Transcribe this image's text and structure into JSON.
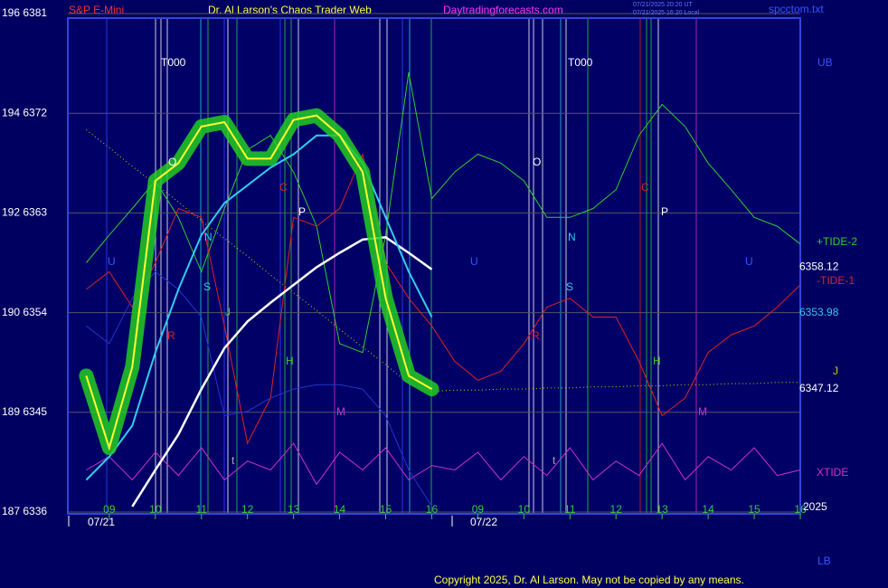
{
  "chart_data": {
    "type": "line",
    "title": "Dr. Al Larson's Chaos Trader Web",
    "instrument": "S&P E-Mini",
    "site": "Daytradingforecasts.com",
    "timestamps": [
      "07/21/2025 20:20 UT",
      "07/21/2025 16:20 Local"
    ],
    "file": "spcctom.txt",
    "copyright": "Copyright 2025, Dr. Al Larson. May not be copied by any means.",
    "dates": [
      "07/21",
      "07/22"
    ],
    "x": [
      8.5,
      9,
      9.5,
      10,
      10.5,
      11,
      11.5,
      12,
      12.5,
      13,
      13.5,
      14,
      14.5,
      15,
      15.5,
      16,
      16.5,
      17,
      17.5,
      18,
      18.5,
      19,
      19.5,
      20,
      20.5,
      21,
      21.5,
      22,
      22.5,
      23,
      23.5,
      24
    ],
    "xlim": [
      8.1,
      24
    ],
    "xticks": [
      {
        "value": 9,
        "label": "09"
      },
      10,
      11,
      12,
      13,
      14,
      15,
      16,
      {
        "value": 17,
        "label": "09"
      },
      {
        "value": 18,
        "label": "10"
      },
      {
        "value": 19,
        "label": "11"
      },
      {
        "value": 20,
        "label": "12"
      },
      {
        "value": 21,
        "label": "13"
      },
      {
        "value": 22,
        "label": "14"
      },
      {
        "value": 23,
        "label": "15"
      },
      {
        "value": 24,
        "label": "16"
      }
    ],
    "ylim": [
      6336,
      6381
    ],
    "yticks": [
      {
        "value": 6381,
        "label": "196  6381"
      },
      {
        "value": 6372,
        "label": "194  6372"
      },
      {
        "value": 6363,
        "label": "192  6363"
      },
      {
        "value": 6354,
        "label": "190  6354"
      },
      {
        "value": 6345,
        "label": "189  6345"
      },
      {
        "value": 6336,
        "label": "187  6336"
      }
    ],
    "grid": true,
    "series": [
      {
        "name": "J",
        "color": "#cccc00",
        "style": "dotted",
        "values": [
          6370.5,
          6368.9,
          6367.2,
          6365.6,
          6364.0,
          6362.3,
          6360.7,
          6359.1,
          6357.4,
          6355.8,
          6354.2,
          6352.5,
          6350.9,
          6349.3,
          6347.6,
          6346.9,
          6347.0,
          6347.0,
          6347.1,
          6347.1,
          6347.2,
          6347.2,
          6347.3,
          6347.3,
          6347.4,
          6347.4,
          6347.5,
          6347.5,
          6347.6,
          6347.6,
          6347.7,
          6347.7
        ]
      },
      {
        "name": "+TIDE-2",
        "color": "#33cc33",
        "values": [
          6358.5,
          6361.0,
          6363.4,
          6365.9,
          6362.6,
          6357.7,
          6363.4,
          6368.7,
          6370.0,
          6366.7,
          6361.8,
          6351.2,
          6350.4,
          6361.0,
          6375.7,
          6364.3,
          6366.7,
          6368.3,
          6367.5,
          6365.9,
          6362.6,
          6362.6,
          6363.4,
          6365.1,
          6370.0,
          6372.8,
          6370.8,
          6367.5,
          6365.1,
          6362.6,
          6361.8,
          6360.2
        ]
      },
      {
        "name": "-TIDE-1",
        "color": "#dd2222",
        "values": [
          6356.1,
          6357.7,
          6354.5,
          6358.5,
          6363.4,
          6362.6,
          6352.8,
          6342.2,
          6346.3,
          6362.6,
          6361.8,
          6363.4,
          6368.3,
          6358.5,
          6355.3,
          6352.8,
          6349.6,
          6347.9,
          6348.7,
          6351.2,
          6354.5,
          6355.3,
          6353.6,
          6353.6,
          6349.6,
          6344.7,
          6346.3,
          6350.4,
          6352.0,
          6352.8,
          6354.5,
          6356.5
        ]
      },
      {
        "name": "XTIDE",
        "color": "#cc33cc",
        "values": [
          6339.8,
          6341.0,
          6338.9,
          6341.4,
          6339.3,
          6341.8,
          6338.9,
          6340.6,
          6339.8,
          6342.2,
          6338.5,
          6341.4,
          6339.8,
          6341.8,
          6338.9,
          6340.2,
          6339.8,
          6341.4,
          6338.9,
          6341.0,
          6339.3,
          6341.8,
          6338.9,
          6340.6,
          6339.3,
          6342.2,
          6338.9,
          6341.0,
          6339.8,
          6341.8,
          6339.3,
          6339.8
        ]
      },
      {
        "color": "#2233cc",
        "values": [
          6352.8,
          6351.2,
          6355.3,
          6357.7,
          6356.1,
          6353.6,
          6344.7,
          6345.1,
          6346.3,
          6347.1,
          6347.5,
          6347.5,
          6347.1,
          6344.7,
          6339.8,
          6336.5,
          null,
          null,
          null,
          null,
          null,
          null,
          null,
          null,
          null,
          null,
          null,
          null,
          null,
          null,
          null,
          null
        ]
      },
      {
        "color": "#ffffff",
        "width": 2.5,
        "values": [
          null,
          null,
          6336.5,
          6339.8,
          6343.0,
          6347.1,
          6350.8,
          6353.2,
          6354.9,
          6356.5,
          6358.1,
          6359.4,
          6360.6,
          6360.8,
          6359.4,
          6357.9,
          null,
          null,
          null,
          null,
          null,
          null,
          null,
          null,
          null,
          null,
          null,
          null,
          null,
          null,
          null,
          null
        ]
      },
      {
        "color": "#33ccee",
        "width": 2,
        "values": [
          6338.9,
          6341.0,
          6343.8,
          6350.4,
          6356.1,
          6361.0,
          6363.9,
          6365.5,
          6367.1,
          6368.3,
          6370.0,
          6370.0,
          6367.5,
          6362.6,
          6357.7,
          6353.6,
          null,
          null,
          null,
          null,
          null,
          null,
          null,
          null,
          null,
          null,
          null,
          null,
          null,
          null,
          null,
          null
        ]
      },
      {
        "color": "#ffff33",
        "width": 2,
        "halo_color": "#22cc22",
        "values": [
          6348.3,
          6341.8,
          6349.1,
          6365.9,
          6367.5,
          6370.8,
          6371.2,
          6367.9,
          6367.9,
          6371.4,
          6371.8,
          6370.0,
          6366.7,
          6355.3,
          6348.3,
          6347.1,
          null,
          null,
          null,
          null,
          null,
          null,
          null,
          null,
          null,
          null,
          null,
          null,
          null,
          null,
          null,
          null
        ]
      }
    ],
    "right_values": [
      6358.12,
      6353.98,
      6347.12
    ],
    "right_labels": [
      "UB",
      "2025",
      "LB"
    ],
    "annotations": [
      "T000",
      "T000",
      "O",
      "O",
      "N",
      "N",
      "S",
      "S",
      "J",
      "R",
      "R",
      "H",
      "H",
      "M",
      "M",
      "C",
      "C",
      "P",
      "P",
      "U",
      "U",
      "U",
      "t",
      "t"
    ]
  }
}
